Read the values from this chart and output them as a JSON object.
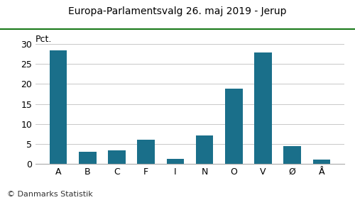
{
  "title": "Europa-Parlamentsvalg 26. maj 2019 - Jerup",
  "categories": [
    "A",
    "B",
    "C",
    "F",
    "I",
    "N",
    "O",
    "V",
    "Ø",
    "Å"
  ],
  "values": [
    28.5,
    3.1,
    3.5,
    6.0,
    1.2,
    7.1,
    18.8,
    27.9,
    4.5,
    1.1
  ],
  "bar_color": "#1a6f8a",
  "pct_label": "Pct.",
  "ylim": [
    0,
    30
  ],
  "yticks": [
    0,
    5,
    10,
    15,
    20,
    25,
    30
  ],
  "background_color": "#ffffff",
  "title_color": "#000000",
  "footer": "© Danmarks Statistik",
  "title_line_color": "#1a7a1a",
  "grid_color": "#c8c8c8",
  "title_fontsize": 10,
  "tick_fontsize": 9,
  "footer_fontsize": 8,
  "pct_fontsize": 9
}
